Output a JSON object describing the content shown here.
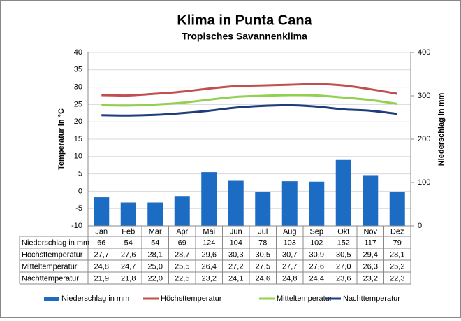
{
  "chart_data": {
    "type": "bar",
    "title": "Klima in Punta Cana",
    "subtitle": "Tropisches Savannenklima",
    "y_label": "Temperatur in °C",
    "y2_label": "Niederschlag in mm",
    "categories": [
      "Jan",
      "Feb",
      "Mar",
      "Apr",
      "Mai",
      "Jun",
      "Jul",
      "Aug",
      "Sep",
      "Okt",
      "Nov",
      "Dez"
    ],
    "ylim": [
      -10,
      40
    ],
    "yticks": [
      -10,
      -5,
      0,
      5,
      10,
      15,
      20,
      25,
      30,
      35,
      40
    ],
    "y2lim": [
      0,
      400
    ],
    "y2ticks": [
      0,
      100,
      200,
      300,
      400
    ],
    "grid": true,
    "series": [
      {
        "name": "Niederschlag in mm",
        "type": "bar",
        "axis": "y2",
        "color": "#1c6cc4",
        "values": [
          66,
          54,
          54,
          69,
          124,
          104,
          78,
          103,
          102,
          152,
          117,
          79
        ]
      },
      {
        "name": "Höchsttemperatur",
        "type": "line",
        "color": "#c0504d",
        "values": [
          27.7,
          27.6,
          28.1,
          28.7,
          29.6,
          30.3,
          30.5,
          30.7,
          30.9,
          30.5,
          29.4,
          28.1
        ],
        "value_labels": [
          "27,7",
          "27,6",
          "28,1",
          "28,7",
          "29,6",
          "30,3",
          "30,5",
          "30,7",
          "30,9",
          "30,5",
          "29,4",
          "28,1"
        ]
      },
      {
        "name": "Mitteltemperatur",
        "type": "line",
        "color": "#92d050",
        "values": [
          24.8,
          24.7,
          25.0,
          25.5,
          26.4,
          27.2,
          27.5,
          27.7,
          27.6,
          27.0,
          26.3,
          25.2
        ],
        "value_labels": [
          "24,8",
          "24,7",
          "25,0",
          "25,5",
          "26,4",
          "27,2",
          "27,5",
          "27,7",
          "27,6",
          "27,0",
          "26,3",
          "25,2"
        ]
      },
      {
        "name": "Nachttemperatur",
        "type": "line",
        "color": "#1f3d7a",
        "values": [
          21.9,
          21.8,
          22.0,
          22.5,
          23.2,
          24.1,
          24.6,
          24.8,
          24.4,
          23.6,
          23.2,
          22.3
        ],
        "value_labels": [
          "21,9",
          "21,8",
          "22,0",
          "22,5",
          "23,2",
          "24,1",
          "24,6",
          "24,8",
          "24,4",
          "23,6",
          "23,2",
          "22,3"
        ]
      }
    ]
  }
}
